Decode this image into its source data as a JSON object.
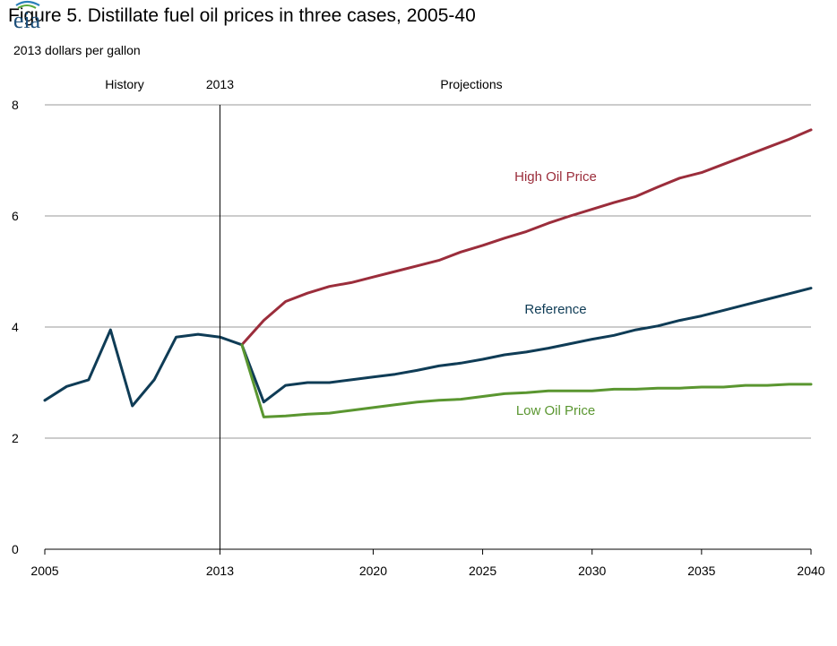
{
  "header": {
    "title": "Figure 5. Distillate fuel oil prices in three cases, 2005-40",
    "units": "2013 dollars  per gallon"
  },
  "logo": {
    "text": "eia",
    "icon": "eia-logo-icon"
  },
  "chart_data": {
    "type": "line",
    "title": "Figure 5. Distillate fuel oil prices in three cases, 2005-40",
    "ylabel": "2013 dollars  per gallon",
    "xlabel": "",
    "xlim": [
      2005,
      2040
    ],
    "ylim": [
      0,
      8
    ],
    "x_ticks": [
      "2005",
      "2013",
      "2020",
      "2025",
      "2030",
      "2035",
      "2040"
    ],
    "y_ticks": [
      "0",
      "2",
      "4",
      "6",
      "8"
    ],
    "grid": true,
    "divider_year": 2013,
    "region_labels": {
      "history": "History",
      "divider": "2013",
      "projections": "Projections"
    },
    "colors": {
      "high": "#9b2d3b",
      "reference": "#0f3c56",
      "low": "#5a9630",
      "grid": "#999999"
    },
    "series": [
      {
        "name": "High Oil Price",
        "key": "high",
        "x": [
          2014,
          2015,
          2016,
          2017,
          2018,
          2019,
          2020,
          2021,
          2022,
          2023,
          2024,
          2025,
          2026,
          2027,
          2028,
          2029,
          2030,
          2031,
          2032,
          2033,
          2034,
          2035,
          2036,
          2037,
          2038,
          2039,
          2040
        ],
        "values": [
          3.68,
          4.12,
          4.46,
          4.61,
          4.73,
          4.8,
          4.9,
          5.0,
          5.1,
          5.2,
          5.35,
          5.47,
          5.6,
          5.72,
          5.87,
          6.0,
          6.12,
          6.24,
          6.35,
          6.52,
          6.68,
          6.78,
          6.93,
          7.08,
          7.23,
          7.38,
          7.55
        ]
      },
      {
        "name": "Reference",
        "key": "reference",
        "x": [
          2005,
          2006,
          2007,
          2008,
          2009,
          2010,
          2011,
          2012,
          2013,
          2014,
          2015,
          2016,
          2017,
          2018,
          2019,
          2020,
          2021,
          2022,
          2023,
          2024,
          2025,
          2026,
          2027,
          2028,
          2029,
          2030,
          2031,
          2032,
          2033,
          2034,
          2035,
          2036,
          2037,
          2038,
          2039,
          2040
        ],
        "values": [
          2.68,
          2.93,
          3.05,
          3.95,
          2.58,
          3.05,
          3.82,
          3.87,
          3.82,
          3.68,
          2.65,
          2.95,
          3.0,
          3.0,
          3.05,
          3.1,
          3.15,
          3.22,
          3.3,
          3.35,
          3.42,
          3.5,
          3.55,
          3.62,
          3.7,
          3.78,
          3.85,
          3.95,
          4.02,
          4.12,
          4.2,
          4.3,
          4.4,
          4.5,
          4.6,
          4.7
        ]
      },
      {
        "name": "Low Oil Price",
        "key": "low",
        "x": [
          2014,
          2015,
          2016,
          2017,
          2018,
          2019,
          2020,
          2021,
          2022,
          2023,
          2024,
          2025,
          2026,
          2027,
          2028,
          2029,
          2030,
          2031,
          2032,
          2033,
          2034,
          2035,
          2036,
          2037,
          2038,
          2039,
          2040
        ],
        "values": [
          3.68,
          2.38,
          2.4,
          2.43,
          2.45,
          2.5,
          2.55,
          2.6,
          2.65,
          2.68,
          2.7,
          2.75,
          2.8,
          2.82,
          2.85,
          2.85,
          2.85,
          2.88,
          2.88,
          2.9,
          2.9,
          2.92,
          2.92,
          2.95,
          2.95,
          2.97,
          2.97
        ]
      }
    ]
  }
}
